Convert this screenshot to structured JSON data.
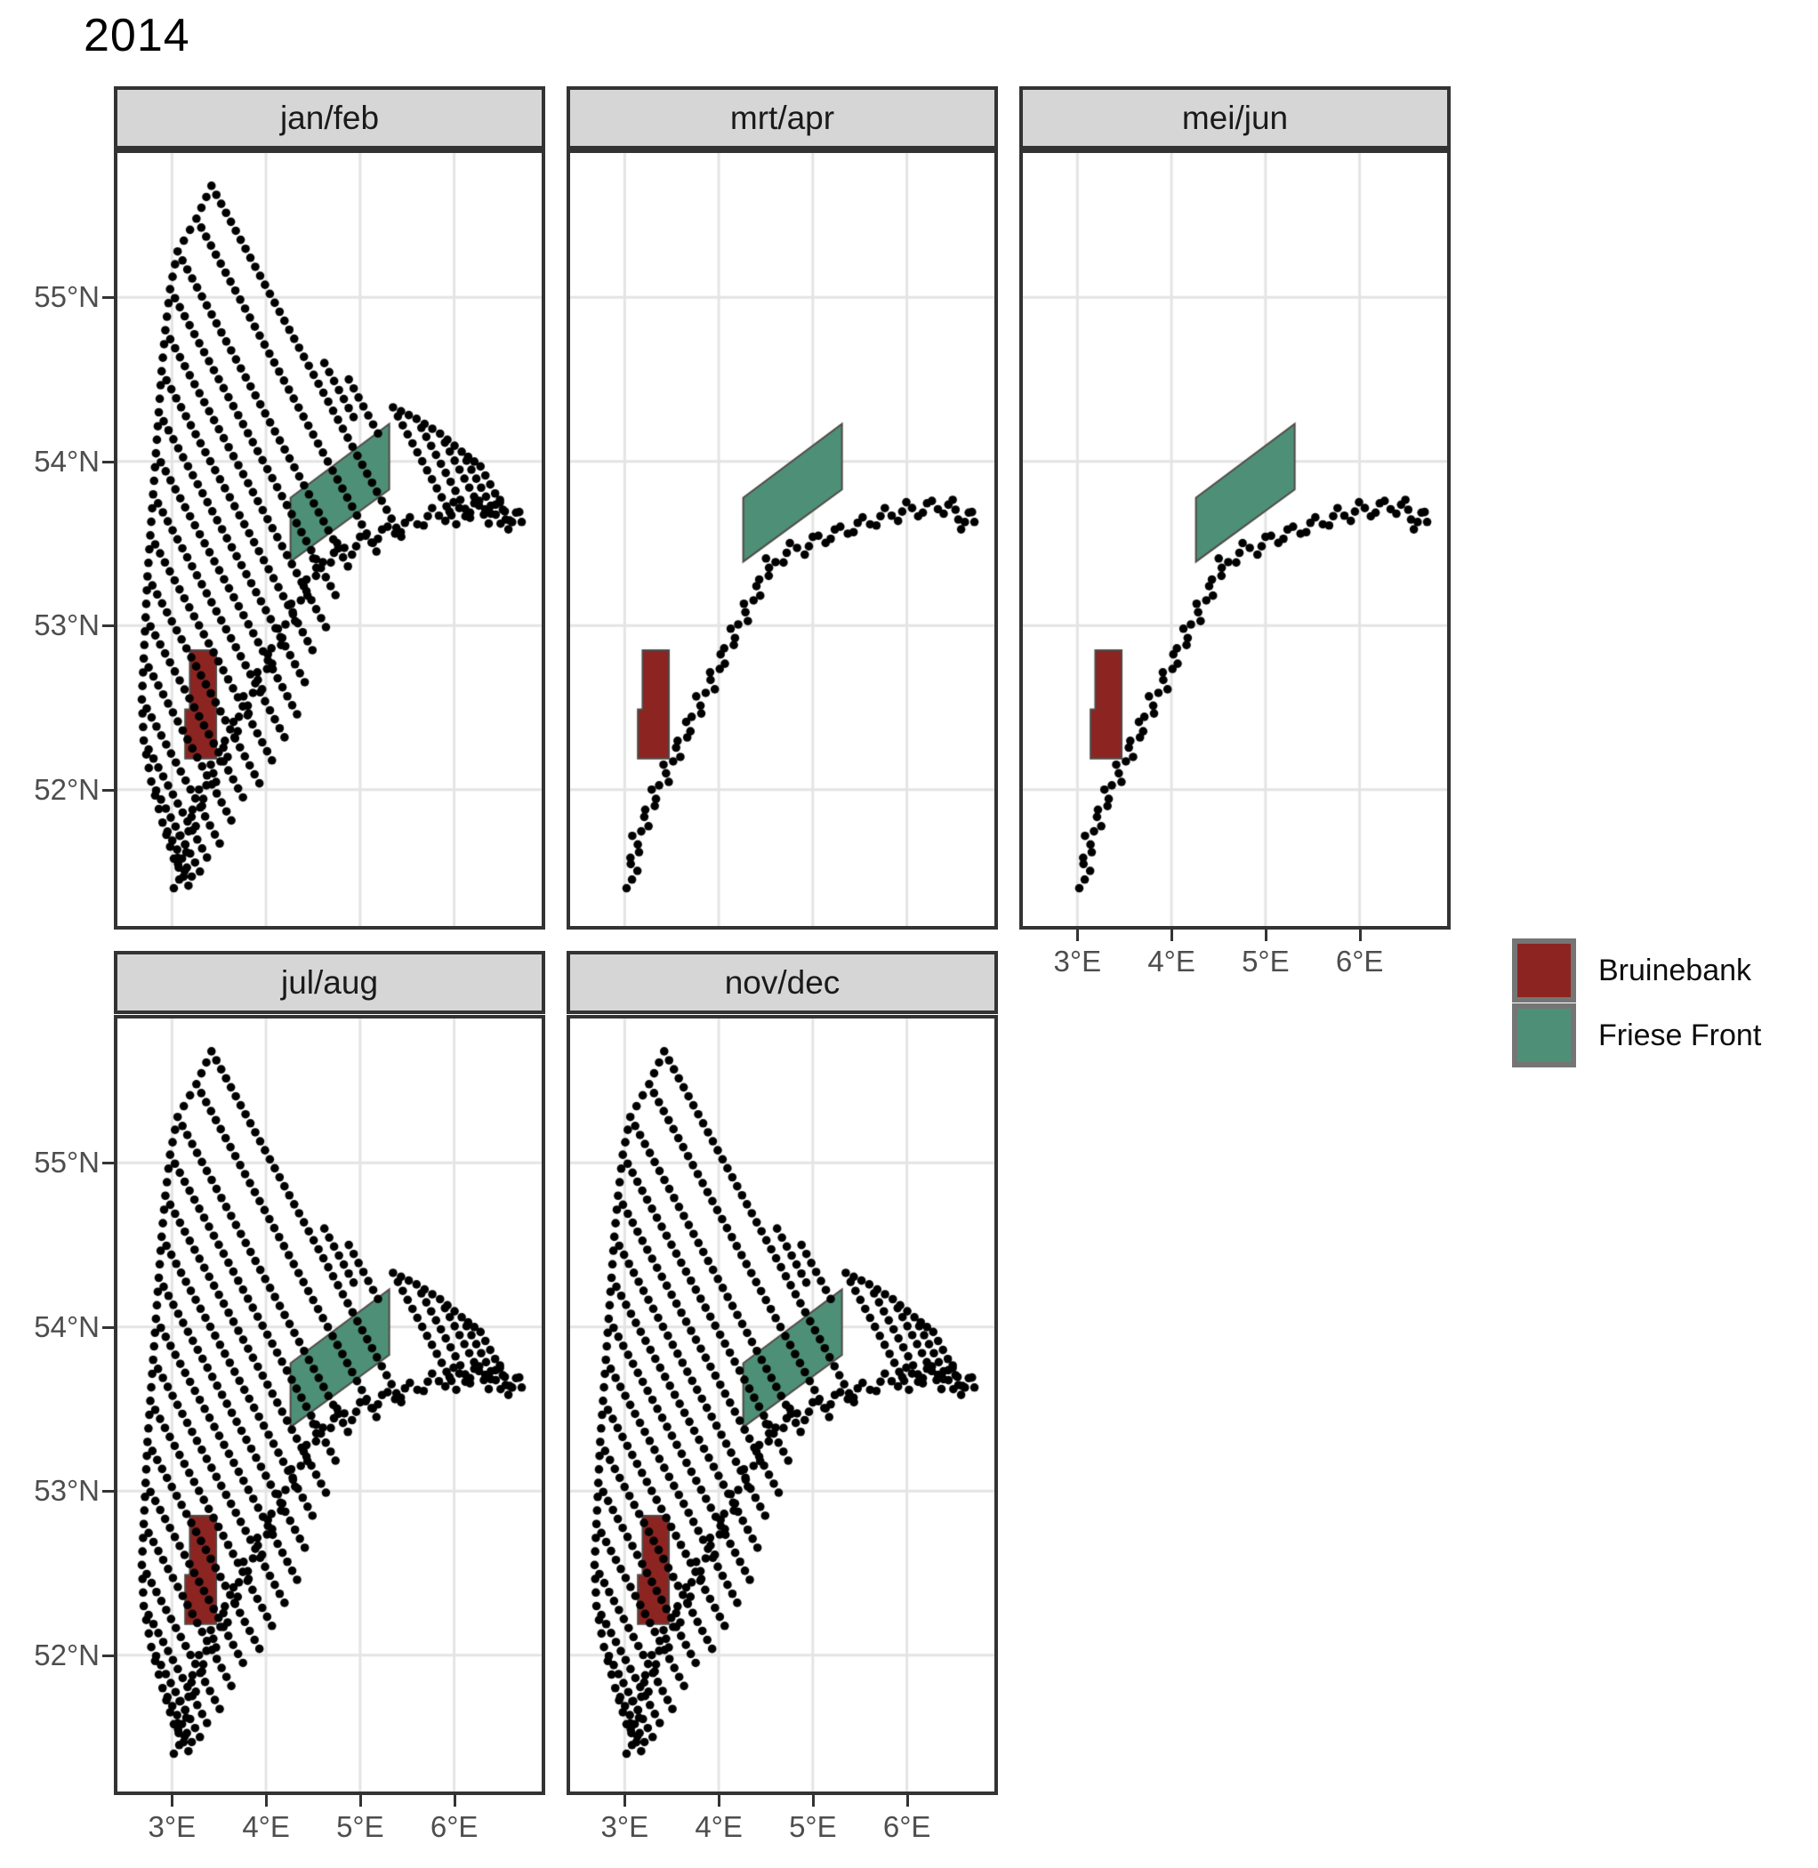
{
  "title": "2014",
  "colors": {
    "background": "#ffffff",
    "panel_border": "#333333",
    "strip_fill": "#d6d6d6",
    "grid": "#e4e4e4",
    "axis_text": "#4d4d4d",
    "tick": "#333333",
    "dot": "#000000",
    "polygon_stroke": "#4f4a48",
    "bruinebank": "#8c2522",
    "friese_front": "#4e9077",
    "legend_key_border": "#757575"
  },
  "facets": [
    {
      "label": "jan/feb",
      "row": 0,
      "col": 0,
      "pattern": "full",
      "x_axis": false
    },
    {
      "label": "mrt/apr",
      "row": 0,
      "col": 1,
      "pattern": "coastal",
      "x_axis": false
    },
    {
      "label": "mei/jun",
      "row": 0,
      "col": 2,
      "pattern": "coastal",
      "x_axis": true
    },
    {
      "label": "jul/aug",
      "row": 1,
      "col": 0,
      "pattern": "full",
      "x_axis": true
    },
    {
      "label": "nov/dec",
      "row": 1,
      "col": 1,
      "pattern": "full",
      "x_axis": true
    }
  ],
  "axes": {
    "x_ticks": [
      {
        "value": 3,
        "label": "3°E"
      },
      {
        "value": 4,
        "label": "4°E"
      },
      {
        "value": 5,
        "label": "5°E"
      },
      {
        "value": 6,
        "label": "6°E"
      }
    ],
    "y_ticks": [
      {
        "value": 55,
        "label": "55°N"
      },
      {
        "value": 54,
        "label": "54°N"
      },
      {
        "value": 53,
        "label": "53°N"
      },
      {
        "value": 52,
        "label": "52°N"
      }
    ]
  },
  "legend": {
    "items": [
      {
        "label": "Bruinebank",
        "color_key": "bruinebank"
      },
      {
        "label": "Friese Front",
        "color_key": "friese_front"
      }
    ]
  },
  "chart_data": {
    "type": "map-facet",
    "title": "2014",
    "facet_labels": [
      "jan/feb",
      "mrt/apr",
      "mei/jun",
      "jul/aug",
      "nov/dec"
    ],
    "lon_range": [
      2.42,
      6.93
    ],
    "lat_range": [
      51.17,
      55.88
    ],
    "grid": true,
    "regions": [
      {
        "name": "Bruinebank",
        "fill": "#8c2522",
        "polygon": [
          [
            3.19,
            52.85
          ],
          [
            3.47,
            52.85
          ],
          [
            3.47,
            52.19
          ],
          [
            3.14,
            52.19
          ],
          [
            3.14,
            52.49
          ],
          [
            3.19,
            52.49
          ]
        ]
      },
      {
        "name": "Friese Front",
        "fill": "#4e9077",
        "polygon": [
          [
            4.26,
            53.78
          ],
          [
            5.31,
            54.23
          ],
          [
            5.31,
            53.83
          ],
          [
            4.26,
            53.39
          ]
        ]
      }
    ],
    "survey": {
      "dot_spacing_px": 11.5,
      "dot_radius_px": 4.8,
      "leg_direction": [
        1,
        -1.06
      ],
      "legs_full": [
        [
          3.42,
          55.68
        ],
        [
          3.26,
          55.48
        ],
        [
          3.06,
          55.28
        ],
        [
          2.98,
          55.05
        ],
        [
          2.93,
          54.8
        ],
        [
          2.89,
          54.55
        ],
        [
          2.86,
          54.3
        ],
        [
          2.83,
          54.05
        ],
        [
          2.8,
          53.8
        ],
        [
          2.77,
          53.55
        ],
        [
          2.74,
          53.3
        ],
        [
          2.72,
          53.05
        ],
        [
          2.7,
          52.8
        ],
        [
          2.68,
          52.55
        ],
        [
          2.7,
          52.3
        ],
        [
          2.78,
          52.05
        ],
        [
          2.9,
          51.8
        ],
        [
          3.02,
          51.58
        ]
      ],
      "spur_legs": [
        {
          "start": [
            4.62,
            54.6
          ],
          "len": 0.3
        },
        {
          "start": [
            4.88,
            54.5
          ],
          "len": 0.3
        },
        {
          "start": [
            5.35,
            54.33
          ]
        },
        {
          "start": [
            5.6,
            54.26
          ]
        },
        {
          "start": [
            5.85,
            54.17
          ]
        },
        {
          "start": [
            6.08,
            54.06
          ]
        },
        {
          "start": [
            6.28,
            53.97
          ]
        }
      ],
      "coast": [
        [
          3.02,
          51.4
        ],
        [
          3.14,
          51.51
        ],
        [
          3.02,
          51.57
        ],
        [
          3.18,
          51.63
        ],
        [
          3.08,
          51.72
        ],
        [
          3.26,
          51.77
        ],
        [
          3.18,
          51.87
        ],
        [
          3.36,
          51.91
        ],
        [
          3.28,
          52.01
        ],
        [
          3.48,
          52.05
        ],
        [
          3.4,
          52.15
        ],
        [
          3.6,
          52.19
        ],
        [
          3.52,
          52.29
        ],
        [
          3.72,
          52.33
        ],
        [
          3.64,
          52.43
        ],
        [
          3.84,
          52.47
        ],
        [
          3.76,
          52.57
        ],
        [
          3.96,
          52.61
        ],
        [
          3.88,
          52.71
        ],
        [
          4.08,
          52.75
        ],
        [
          4.0,
          52.85
        ],
        [
          4.2,
          52.89
        ],
        [
          4.12,
          52.99
        ],
        [
          4.32,
          53.03
        ],
        [
          4.25,
          53.13
        ],
        [
          4.45,
          53.17
        ],
        [
          4.38,
          53.27
        ],
        [
          4.56,
          53.31
        ],
        [
          4.5,
          53.41
        ],
        [
          4.68,
          53.37
        ],
        [
          4.76,
          53.51
        ],
        [
          4.92,
          53.43
        ],
        [
          5.02,
          53.57
        ],
        [
          5.16,
          53.49
        ],
        [
          5.26,
          53.62
        ],
        [
          5.41,
          53.54
        ],
        [
          5.51,
          53.67
        ],
        [
          5.66,
          53.59
        ],
        [
          5.76,
          53.72
        ],
        [
          5.9,
          53.63
        ],
        [
          6.0,
          53.76
        ],
        [
          6.14,
          53.65
        ],
        [
          6.24,
          53.78
        ],
        [
          6.38,
          53.67
        ],
        [
          6.48,
          53.78
        ],
        [
          6.58,
          53.58
        ],
        [
          6.68,
          53.72
        ],
        [
          6.74,
          53.58
        ]
      ],
      "stopline": [
        [
          2.42,
          51.4
        ],
        [
          3.05,
          51.4
        ],
        [
          3.65,
          51.85
        ],
        [
          4.25,
          52.45
        ],
        [
          4.62,
          53.1
        ],
        [
          4.88,
          53.42
        ],
        [
          5.25,
          53.52
        ],
        [
          5.7,
          53.6
        ],
        [
          6.1,
          53.66
        ],
        [
          6.93,
          53.68
        ]
      ]
    }
  }
}
